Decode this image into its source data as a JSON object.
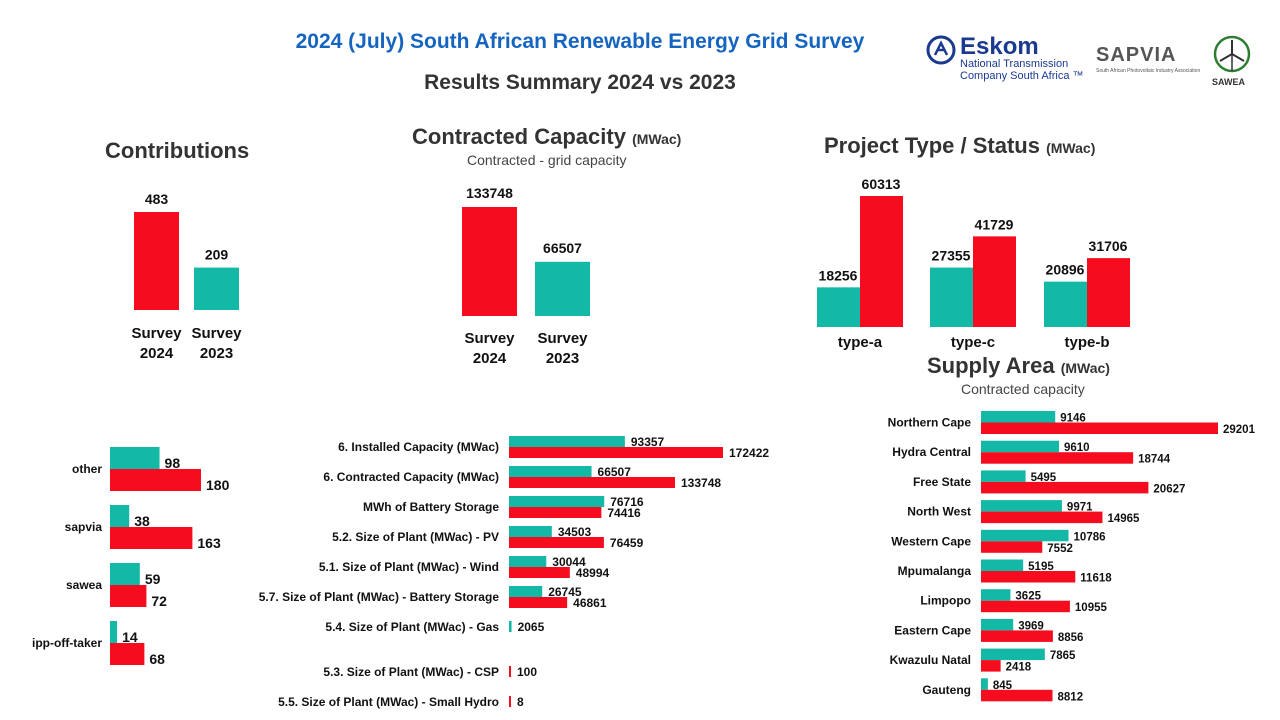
{
  "header": {
    "title": "2024 (July) South African Renewable Energy Grid Survey",
    "subtitle": "Results Summary 2024 vs 2023"
  },
  "logos": {
    "eskom": {
      "name": "Eskom",
      "line1": "National Transmission",
      "line2": "Company South Africa ™"
    },
    "sapvia": {
      "name": "SAPVIA",
      "tagline": "South African Photovoltaic Industry Association"
    },
    "sawea": {
      "name": "SAWEA"
    }
  },
  "colors": {
    "survey_2024": "#f50c1f",
    "survey_2023": "#14b8a6",
    "title_blue": "#1565c0"
  },
  "sections": {
    "contributions": {
      "title": "Contributions"
    },
    "contracted": {
      "title": "Contracted Capacity",
      "unit": "(MWac)",
      "subtitle": "Contracted - grid capacity"
    },
    "project_type": {
      "title": "Project Type / Status",
      "unit": "(MWac)"
    },
    "supply_area": {
      "title": "Supply Area",
      "unit": "(MWac)",
      "subtitle": "Contracted capacity"
    }
  },
  "chart_data": [
    {
      "id": "contributions",
      "type": "bar",
      "categories": [
        "Survey 2024",
        "Survey 2023"
      ],
      "values": [
        483,
        209
      ]
    },
    {
      "id": "contracted",
      "type": "bar",
      "categories": [
        "Survey 2024",
        "Survey 2023"
      ],
      "values": [
        133748,
        66507
      ]
    },
    {
      "id": "project_type",
      "type": "bar",
      "categories": [
        "type-a",
        "type-c",
        "type-b"
      ],
      "series": [
        {
          "values": [
            18256,
            27355,
            20896
          ]
        },
        {
          "values": [
            60313,
            41729,
            31706
          ]
        }
      ]
    },
    {
      "id": "contributors",
      "type": "bar",
      "orientation": "horizontal",
      "categories": [
        "other",
        "sapvia",
        "sawea",
        "ipp-off-taker"
      ],
      "series": [
        {
          "values": [
            98,
            38,
            59,
            14
          ]
        },
        {
          "values": [
            180,
            163,
            72,
            68
          ]
        }
      ]
    },
    {
      "id": "capacity_breakdown",
      "type": "bar",
      "orientation": "horizontal",
      "categories": [
        "6. Installed Capacity (MWac)",
        "6. Contracted Capacity (MWac)",
        "MWh of Battery Storage",
        "5.2. Size of Plant (MWac) - PV",
        "5.1. Size of Plant (MWac) - Wind",
        "5.7. Size of Plant (MWac) - Battery Storage",
        "5.4. Size of Plant (MWac) - Gas",
        "5.3. Size of Plant (MWac) - CSP",
        "5.5. Size of Plant (MWac) - Small Hydro"
      ],
      "series": [
        {
          "values": [
            93357,
            66507,
            76716,
            34503,
            30044,
            26745,
            2065,
            null,
            null
          ]
        },
        {
          "values": [
            172422,
            133748,
            74416,
            76459,
            48994,
            46861,
            null,
            100,
            8
          ]
        }
      ]
    },
    {
      "id": "supply_area",
      "type": "bar",
      "orientation": "horizontal",
      "categories": [
        "Northern Cape",
        "Hydra Central",
        "Free State",
        "North West",
        "Western Cape",
        "Mpumalanga",
        "Limpopo",
        "Eastern Cape",
        "Kwazulu Natal",
        "Gauteng"
      ],
      "series": [
        {
          "values": [
            9146,
            9610,
            5495,
            9971,
            10786,
            5195,
            3625,
            3969,
            7865,
            845
          ]
        },
        {
          "values": [
            29201,
            18744,
            20627,
            14965,
            7552,
            11618,
            10955,
            8856,
            2418,
            8812
          ]
        }
      ]
    }
  ]
}
